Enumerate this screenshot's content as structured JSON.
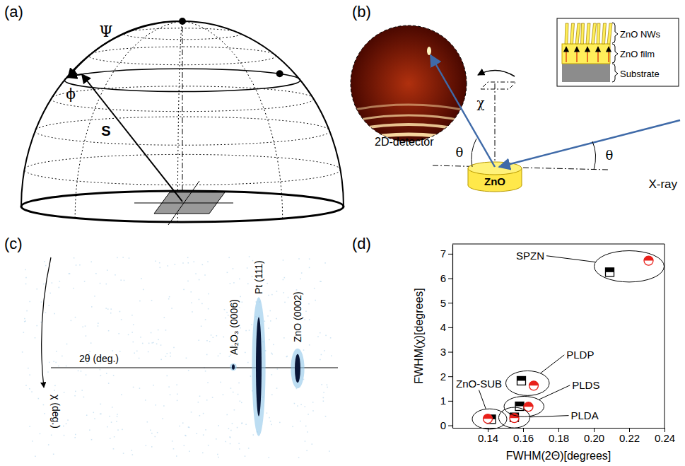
{
  "panel_labels": [
    "(a)",
    "(b)",
    "(c)",
    "(d)"
  ],
  "panel_a": {
    "labels": [
      "Ψ",
      "ϕ",
      "S"
    ]
  },
  "panel_b": {
    "detector_label": "2D-detector",
    "source_label": "X-ray",
    "angle_labels": [
      "θ",
      "θ",
      "χ"
    ],
    "sample_label": "ZnO",
    "inset_layers": [
      "ZnO NWs",
      "ZnO film",
      "Substrate"
    ]
  },
  "panel_c": {
    "peaks": [
      "Al₂O₃ (0006)",
      "Pt (111)",
      "ZnO (0002)"
    ],
    "x_label": "2θ (deg.)",
    "y_label": "χ (deg.)"
  },
  "chart_data": {
    "type": "scatter",
    "x_label": "FWHM(2Θ)[degrees]",
    "y_label": "FWHM(χ)[degrees]",
    "xlim": [
      0.12,
      0.24
    ],
    "xticks": [
      0.14,
      0.16,
      0.18,
      {
        "value": 0.2,
        "label": "0.20"
      },
      0.22,
      0.24
    ],
    "ylim": [
      -0.1,
      7.4
    ],
    "yticks": [
      0,
      1,
      2,
      3,
      4,
      5,
      6,
      7
    ],
    "series": [
      {
        "color": "#000000",
        "marker": "square",
        "x": [
          0.142,
          0.155,
          0.158,
          0.159,
          0.209
        ],
        "values": [
          0.25,
          0.33,
          0.78,
          1.82,
          6.25
        ]
      },
      {
        "color": "#e8201a",
        "marker": "circle",
        "x": [
          0.14,
          0.155,
          0.163,
          0.166,
          0.231
        ],
        "values": [
          0.27,
          0.3,
          0.76,
          1.62,
          6.72
        ]
      }
    ],
    "annotations": [
      "ZnO-SUB",
      "PLDA",
      "PLDS",
      "PLDP",
      "SPZN"
    ]
  }
}
